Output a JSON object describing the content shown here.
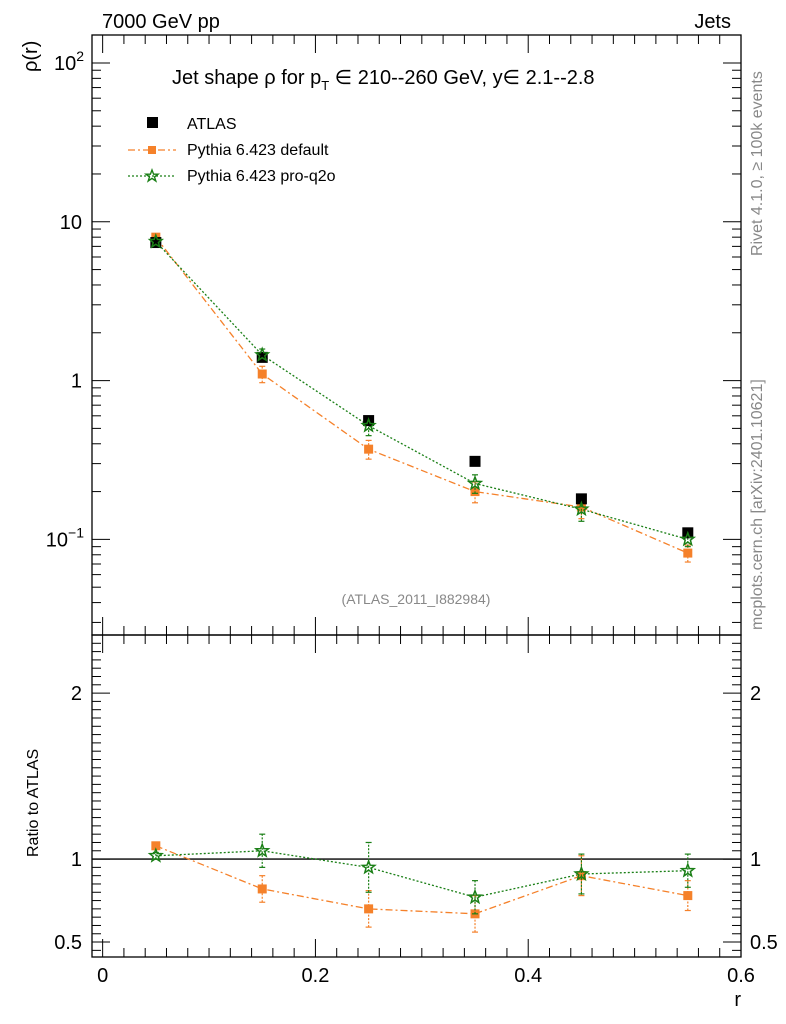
{
  "header": {
    "left": "7000 GeV pp",
    "right": "Jets"
  },
  "side_labels": {
    "rivet": "Rivet 4.1.0, ≥ 100k events",
    "site": "mcplots.cern.ch [arXiv:2401.10621]"
  },
  "colors": {
    "atlas": "#000000",
    "default": "#f5812a",
    "proq2o": "#1a7f16"
  },
  "chart_data": [
    {
      "type": "scatter",
      "panel": "main",
      "title": "Jet shape ρ for p_T ∈ 210--260 GeV, y∈ 2.1--2.8",
      "title_parts": {
        "pre": "Jet shape ρ for p",
        "sub": "T",
        "post": " ∈ 210--260 GeV, y∈ 2.1--2.8"
      },
      "ylabel": "ρ(r)",
      "yscale": "log",
      "ylim": [
        0.025,
        150
      ],
      "xlim": [
        -0.01,
        0.6
      ],
      "y_ticks": [
        {
          "value": 0.1,
          "base": "10",
          "exp": "−1"
        },
        {
          "value": 1,
          "base": "1",
          "exp": ""
        },
        {
          "value": 10,
          "base": "10",
          "exp": ""
        },
        {
          "value": 100,
          "base": "10",
          "exp": "2"
        }
      ],
      "legend": [
        {
          "name": "ATLAS",
          "marker": "square"
        },
        {
          "name": "Pythia 6.423 default",
          "marker": "small-square"
        },
        {
          "name": "Pythia 6.423 pro-q2o",
          "marker": "star"
        }
      ],
      "watermark": "(ATLAS_2011_I882984)",
      "x": [
        0.05,
        0.15,
        0.25,
        0.35,
        0.45,
        0.55
      ],
      "series": [
        {
          "name": "ATLAS",
          "values": [
            7.4,
            1.4,
            0.56,
            0.31,
            0.18,
            0.11
          ]
        },
        {
          "name": "Pythia 6.423 default",
          "values": [
            8.0,
            1.1,
            0.37,
            0.2,
            0.16,
            0.082
          ],
          "err_lo": [
            0.3,
            0.13,
            0.05,
            0.03,
            0.025,
            0.01
          ],
          "err_hi": [
            0.3,
            0.13,
            0.05,
            0.03,
            0.025,
            0.01
          ]
        },
        {
          "name": "Pythia 6.423 pro-q2o",
          "values": [
            7.5,
            1.45,
            0.52,
            0.225,
            0.155,
            0.1
          ],
          "err_lo": [
            0.3,
            0.13,
            0.07,
            0.03,
            0.025,
            0.01
          ],
          "err_hi": [
            0.3,
            0.13,
            0.07,
            0.03,
            0.025,
            0.01
          ]
        }
      ]
    },
    {
      "type": "scatter",
      "panel": "ratio",
      "ylabel": "Ratio to ATLAS",
      "xlabel": "r",
      "ylim": [
        0.41,
        2.35
      ],
      "y_ticks": [
        0.5,
        1,
        2
      ],
      "y_tick_labels": [
        "0.5",
        "1",
        "2"
      ],
      "x_ticks": [
        0,
        0.2,
        0.4,
        0.6
      ],
      "x_tick_labels": [
        "0",
        "0.2",
        "0.4",
        "0.6"
      ],
      "x": [
        0.05,
        0.15,
        0.25,
        0.35,
        0.45,
        0.55
      ],
      "reference": 1,
      "series": [
        {
          "name": "Pythia 6.423 default",
          "values": [
            1.08,
            0.82,
            0.7,
            0.67,
            0.9,
            0.78
          ],
          "err": [
            0.02,
            0.08,
            0.11,
            0.11,
            0.12,
            0.09
          ]
        },
        {
          "name": "Pythia 6.423 pro-q2o",
          "values": [
            1.02,
            1.05,
            0.95,
            0.77,
            0.91,
            0.93
          ],
          "err": [
            0.02,
            0.1,
            0.15,
            0.1,
            0.12,
            0.1
          ]
        }
      ]
    }
  ]
}
